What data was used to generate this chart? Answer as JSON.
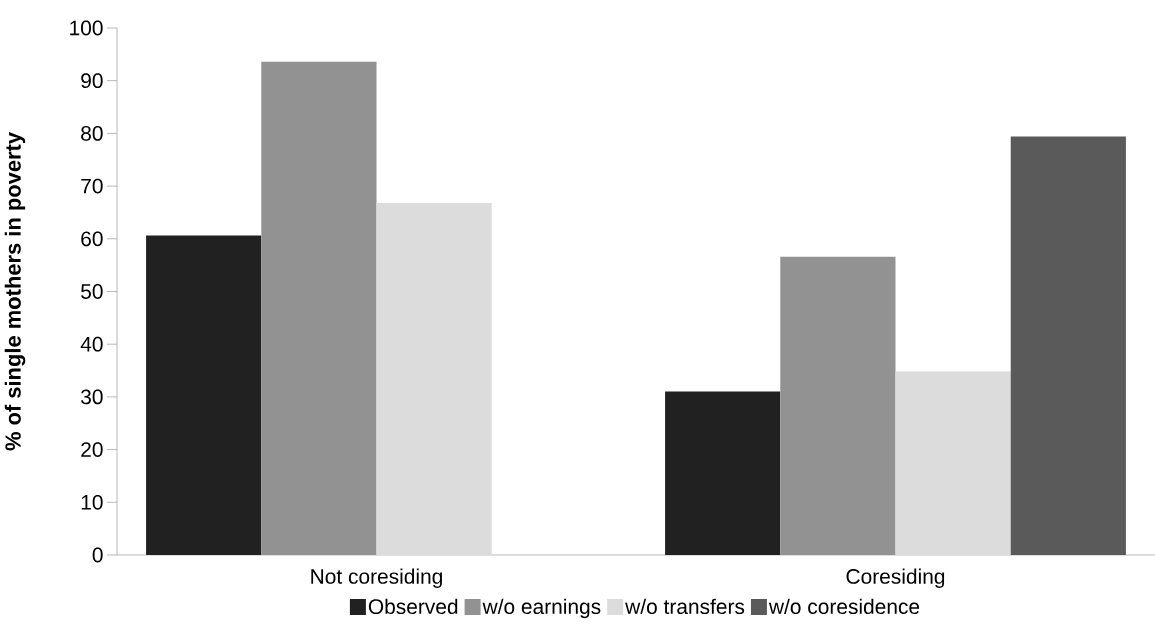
{
  "chart_data": {
    "type": "bar",
    "ylabel": "% of single mothers in poverty",
    "categories": [
      "Not coresiding",
      "Coresiding"
    ],
    "series": [
      {
        "name": "Observed",
        "color": "#212121",
        "values": [
          60.6,
          31.0
        ]
      },
      {
        "name": "w/o earnings",
        "color": "#929292",
        "values": [
          93.6,
          56.6
        ]
      },
      {
        "name": "w/o transfers",
        "color": "#dcdcdc",
        "values": [
          66.8,
          34.8
        ]
      },
      {
        "name": "w/o coresidence",
        "color": "#5a5a5a",
        "values": [
          null,
          79.4
        ]
      }
    ],
    "ylim": [
      0,
      100
    ],
    "yticks": [
      0,
      10,
      20,
      30,
      40,
      50,
      60,
      70,
      80,
      90,
      100
    ],
    "legend": "bottom",
    "grid": false
  }
}
